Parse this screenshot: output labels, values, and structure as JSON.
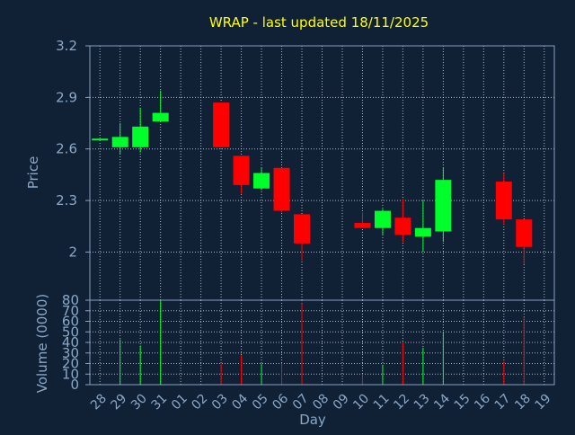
{
  "colors": {
    "background": "#102035",
    "axis": "#8aa0c0",
    "grid": "#c8d0dc",
    "title": "#ffff00",
    "up": "#00ff2a",
    "down": "#ff0000",
    "labels": "#8aa8c8"
  },
  "chart_data": {
    "type": "candlestick",
    "title": "WRAP - last updated 18/11/2025",
    "xlabel": "Day",
    "ylabel": "Price",
    "volume_label": "Volume (0000)",
    "ylim": [
      1.72,
      3.2
    ],
    "price_ticks": [
      {
        "value": 2.0,
        "label": "2"
      },
      {
        "value": 2.3,
        "label": "2.3"
      },
      {
        "value": 2.6,
        "label": "2.6"
      },
      {
        "value": 2.9,
        "label": "2.9"
      },
      {
        "value": 3.2,
        "label": "3.2"
      }
    ],
    "volume_ylim": [
      0,
      80
    ],
    "volume_ticks": [
      {
        "value": 0,
        "label": "0"
      },
      {
        "value": 10,
        "label": "10"
      },
      {
        "value": 20,
        "label": "20"
      },
      {
        "value": 30,
        "label": "30"
      },
      {
        "value": 40,
        "label": "40"
      },
      {
        "value": 50,
        "label": "50"
      },
      {
        "value": 60,
        "label": "60"
      },
      {
        "value": 70,
        "label": "70"
      },
      {
        "value": 80,
        "label": "80"
      }
    ],
    "days": [
      "28",
      "29",
      "30",
      "31",
      "01",
      "02",
      "03",
      "04",
      "05",
      "06",
      "07",
      "08",
      "09",
      "10",
      "11",
      "12",
      "13",
      "14",
      "15",
      "16",
      "17",
      "18",
      "19"
    ],
    "grid": true,
    "candles": [
      {
        "day": "28",
        "open": 2.66,
        "high": 2.66,
        "low": 2.66,
        "close": 2.66,
        "volume": 0
      },
      {
        "day": "29",
        "open": 2.61,
        "high": 2.75,
        "low": 2.57,
        "close": 2.67,
        "volume": 43
      },
      {
        "day": "30",
        "open": 2.61,
        "high": 2.84,
        "low": 2.58,
        "close": 2.73,
        "volume": 37
      },
      {
        "day": "31",
        "open": 2.76,
        "high": 2.94,
        "low": 2.76,
        "close": 2.81,
        "volume": 80
      },
      {
        "day": "03",
        "open": 2.87,
        "high": 2.87,
        "low": 2.61,
        "close": 2.61,
        "volume": 20
      },
      {
        "day": "04",
        "open": 2.56,
        "high": 2.56,
        "low": 2.34,
        "close": 2.39,
        "volume": 28
      },
      {
        "day": "05",
        "open": 2.37,
        "high": 2.49,
        "low": 2.36,
        "close": 2.46,
        "volume": 20
      },
      {
        "day": "06",
        "open": 2.49,
        "high": 2.49,
        "low": 2.23,
        "close": 2.24,
        "volume": 20
      },
      {
        "day": "07",
        "open": 2.22,
        "high": 2.22,
        "low": 1.95,
        "close": 2.05,
        "volume": 77
      },
      {
        "day": "10",
        "open": 2.17,
        "high": 2.23,
        "low": 2.14,
        "close": 2.14,
        "volume": 10
      },
      {
        "day": "11",
        "open": 2.14,
        "high": 2.25,
        "low": 2.1,
        "close": 2.24,
        "volume": 19
      },
      {
        "day": "12",
        "open": 2.2,
        "high": 2.31,
        "low": 2.06,
        "close": 2.1,
        "volume": 40
      },
      {
        "day": "13",
        "open": 2.09,
        "high": 2.3,
        "low": 2.0,
        "close": 2.14,
        "volume": 35
      },
      {
        "day": "14",
        "open": 2.12,
        "high": 2.49,
        "low": 2.06,
        "close": 2.42,
        "volume": 50
      },
      {
        "day": "17",
        "open": 2.41,
        "high": 2.46,
        "low": 2.16,
        "close": 2.19,
        "volume": 22
      },
      {
        "day": "18",
        "open": 2.19,
        "high": 2.19,
        "low": 1.93,
        "close": 2.03,
        "volume": 64
      }
    ]
  }
}
